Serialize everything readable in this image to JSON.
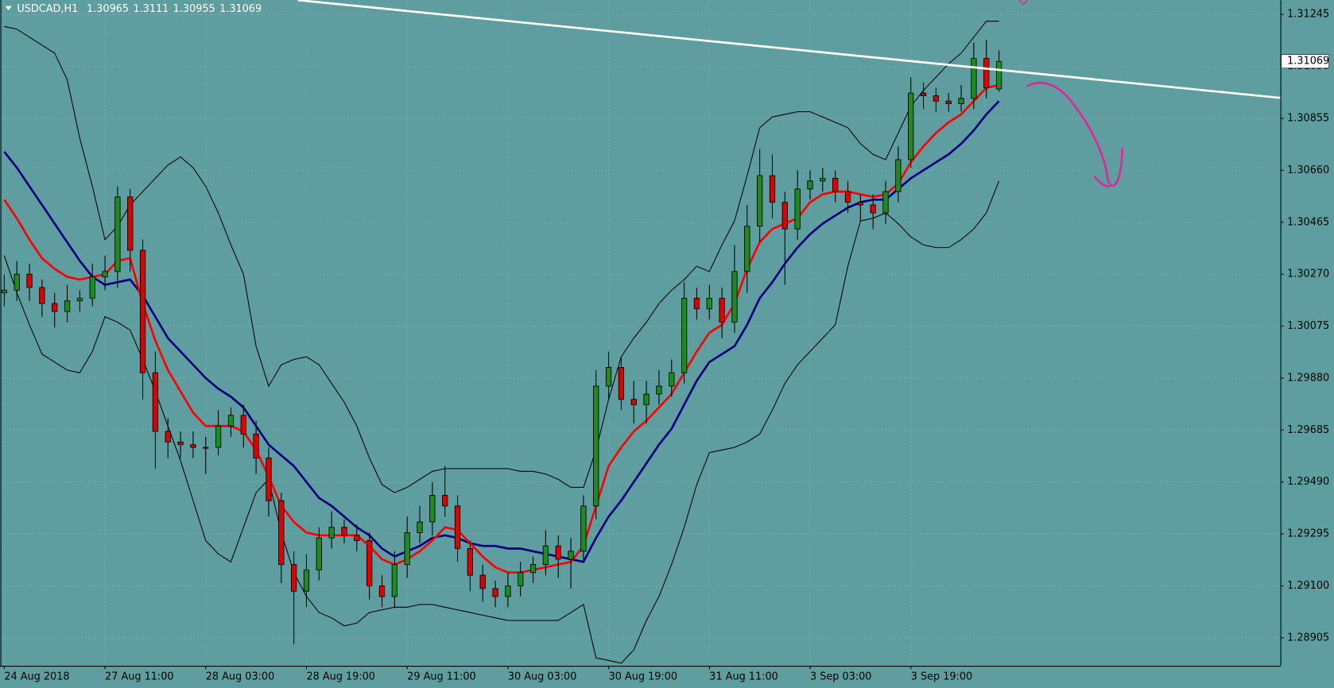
{
  "chart_data": {
    "type": "candlestick",
    "title": "USDCAD,H1",
    "categories": [
      "24 Aug 2018",
      null,
      null,
      null,
      null,
      null,
      null,
      null,
      "27 Aug 11:00",
      null,
      null,
      null,
      null,
      null,
      null,
      null,
      "28 Aug 03:00",
      null,
      null,
      null,
      null,
      null,
      null,
      null,
      "28 Aug 19:00",
      null,
      null,
      null,
      null,
      null,
      null,
      null,
      "29 Aug 11:00",
      null,
      null,
      null,
      null,
      null,
      null,
      null,
      "30 Aug 03:00",
      null,
      null,
      null,
      null,
      null,
      null,
      null,
      "30 Aug 19:00",
      null,
      null,
      null,
      null,
      null,
      null,
      null,
      "31 Aug 11:00",
      null,
      null,
      null,
      null,
      null,
      null,
      null,
      "3 Sep 03:00",
      null,
      null,
      null,
      null,
      null,
      null,
      null,
      "3 Sep 19:00",
      null,
      null,
      null,
      null,
      null,
      null,
      null
    ],
    "open": [
      1.302,
      1.3021,
      1.3027,
      1.3022,
      1.3016,
      1.3013,
      1.3017,
      1.3018,
      1.3026,
      1.3028,
      1.3056,
      1.3036,
      1.299,
      1.2968,
      1.2964,
      1.2963,
      1.2962,
      1.2962,
      1.297,
      1.2974,
      1.2967,
      1.2958,
      1.2942,
      1.2918,
      1.2908,
      1.2916,
      1.2928,
      1.2932,
      1.2929,
      1.2927,
      1.291,
      1.2906,
      1.2918,
      1.293,
      1.2934,
      1.2944,
      1.294,
      1.2924,
      1.2914,
      1.2909,
      1.2906,
      1.291,
      1.2915,
      1.2918,
      1.2925,
      1.292,
      1.2923,
      1.294,
      1.2985,
      1.2992,
      1.298,
      1.2978,
      1.2982,
      1.2985,
      1.299,
      1.3018,
      1.3014,
      1.3018,
      1.3009,
      1.3028,
      1.3045,
      1.3064,
      1.3054,
      1.3044,
      1.3059,
      1.3062,
      1.3063,
      1.3058,
      1.3054,
      1.3053,
      1.305,
      1.3058,
      1.307,
      1.3095,
      1.3094,
      1.3092,
      1.3091,
      1.3093,
      1.3108,
      1.30965
    ],
    "high": [
      1.3027,
      1.3032,
      1.3031,
      1.3025,
      1.302,
      1.3023,
      1.3021,
      1.3031,
      1.3034,
      1.306,
      1.3059,
      1.304,
      1.2998,
      1.2973,
      1.2968,
      1.2968,
      1.2966,
      1.2976,
      1.2977,
      1.2978,
      1.2972,
      1.2962,
      1.2945,
      1.2923,
      1.2922,
      1.2932,
      1.2938,
      1.2935,
      1.2933,
      1.293,
      1.2914,
      1.2923,
      1.2936,
      1.294,
      1.2949,
      1.2955,
      1.2944,
      1.2927,
      1.2918,
      1.2912,
      1.2915,
      1.2919,
      1.2921,
      1.2931,
      1.2929,
      1.2928,
      1.2944,
      1.2991,
      1.2998,
      1.2996,
      1.2987,
      1.2987,
      1.2991,
      1.2995,
      1.3024,
      1.3022,
      1.3023,
      1.3022,
      1.3038,
      1.3053,
      1.3074,
      1.3072,
      1.3058,
      1.3066,
      1.3066,
      1.3067,
      1.3066,
      1.3062,
      1.3057,
      1.3057,
      1.3062,
      1.3075,
      1.3101,
      1.3099,
      1.3097,
      1.3095,
      1.3098,
      1.3114,
      1.3115,
      1.3111
    ],
    "low": [
      1.3015,
      1.3017,
      1.3017,
      1.3011,
      1.3007,
      1.3009,
      1.3013,
      1.3015,
      1.3021,
      1.3022,
      1.3028,
      1.298,
      1.2954,
      1.2958,
      1.2958,
      1.2958,
      1.2952,
      1.2959,
      1.2966,
      1.2962,
      1.2952,
      1.2936,
      1.2911,
      1.2888,
      1.2902,
      1.2912,
      1.2924,
      1.2926,
      1.2923,
      1.2905,
      1.2902,
      1.2902,
      1.2913,
      1.2926,
      1.2929,
      1.2936,
      1.2919,
      1.2908,
      1.2904,
      1.2902,
      1.2902,
      1.2906,
      1.2911,
      1.2914,
      1.2913,
      1.2909,
      1.2919,
      1.2935,
      1.298,
      1.2976,
      1.2971,
      1.2971,
      1.2978,
      1.2981,
      1.2986,
      1.301,
      1.301,
      1.3003,
      1.3005,
      1.302,
      1.3039,
      1.3048,
      1.3023,
      1.304,
      1.3055,
      1.3058,
      1.3054,
      1.305,
      1.3047,
      1.3044,
      1.3046,
      1.3054,
      1.3067,
      1.3089,
      1.3088,
      1.3088,
      1.3088,
      1.3089,
      1.3093,
      1.30955
    ],
    "close": [
      1.3021,
      1.3027,
      1.3022,
      1.3016,
      1.3013,
      1.3017,
      1.3018,
      1.3026,
      1.3028,
      1.3056,
      1.3036,
      1.299,
      1.2968,
      1.2964,
      1.2963,
      1.2962,
      1.2962,
      1.297,
      1.2974,
      1.2967,
      1.2958,
      1.2942,
      1.2918,
      1.2908,
      1.2916,
      1.2928,
      1.2932,
      1.2929,
      1.2927,
      1.291,
      1.2906,
      1.2918,
      1.293,
      1.2934,
      1.2944,
      1.294,
      1.2924,
      1.2914,
      1.2909,
      1.2906,
      1.291,
      1.2915,
      1.2918,
      1.2925,
      1.292,
      1.2923,
      1.294,
      1.2985,
      1.2992,
      1.298,
      1.2978,
      1.2982,
      1.2985,
      1.299,
      1.3018,
      1.3014,
      1.3018,
      1.3009,
      1.3028,
      1.3045,
      1.3064,
      1.3054,
      1.3044,
      1.3059,
      1.3062,
      1.3063,
      1.3058,
      1.3054,
      1.3053,
      1.305,
      1.3058,
      1.307,
      1.3095,
      1.3094,
      1.3092,
      1.3091,
      1.3093,
      1.3108,
      1.3097,
      1.31069
    ],
    "up_color": "#1f8a1f",
    "down_color": "#e00000",
    "series": [
      {
        "color": "#000000",
        "values": [
          1.312,
          1.3119,
          1.3116,
          1.3113,
          1.311,
          1.31,
          1.3078,
          1.306,
          1.304,
          1.3045,
          1.3053,
          1.3058,
          1.3063,
          1.3068,
          1.3071,
          1.3067,
          1.306,
          1.305,
          1.3038,
          1.3027,
          1.3,
          1.2985,
          1.2993,
          1.2995,
          1.2996,
          1.2993,
          1.2986,
          1.2979,
          1.297,
          1.2958,
          1.2948,
          1.2945,
          1.2947,
          1.295,
          1.2953,
          1.2954,
          1.2954,
          1.2954,
          1.2954,
          1.2954,
          1.2954,
          1.2953,
          1.2953,
          1.2952,
          1.295,
          1.2947,
          1.2947,
          1.2961,
          1.298,
          1.2996,
          1.3003,
          1.3009,
          1.3016,
          1.3021,
          1.3025,
          1.303,
          1.3028,
          1.3038,
          1.3047,
          1.3064,
          1.3082,
          1.3086,
          1.3087,
          1.3088,
          1.3088,
          1.3086,
          1.3084,
          1.3082,
          1.3076,
          1.3072,
          1.307,
          1.308,
          1.309,
          1.3096,
          1.3101,
          1.3106,
          1.311,
          1.3116,
          1.3122,
          1.3122
        ]
      },
      {
        "color": "#000000",
        "values": [
          1.3034,
          1.302,
          1.3008,
          1.2997,
          1.2994,
          1.2991,
          1.299,
          1.2998,
          1.3011,
          1.3009,
          1.3006,
          1.2995,
          1.2983,
          1.297,
          1.2957,
          1.2942,
          1.2927,
          1.2922,
          1.2919,
          1.2932,
          1.2945,
          1.295,
          1.293,
          1.2915,
          1.2906,
          1.29,
          1.2898,
          1.2895,
          1.2896,
          1.29,
          1.2901,
          1.2902,
          1.2902,
          1.2903,
          1.2903,
          1.2902,
          1.2901,
          1.29,
          1.2899,
          1.2898,
          1.2897,
          1.2897,
          1.2897,
          1.2897,
          1.2897,
          1.29,
          1.2903,
          1.2883,
          1.2882,
          1.2881,
          1.2886,
          1.2897,
          1.2906,
          1.2918,
          1.2932,
          1.2948,
          1.296,
          1.2961,
          1.2962,
          1.2964,
          1.2967,
          1.2976,
          1.2986,
          1.2993,
          1.2998,
          1.3003,
          1.3008,
          1.303,
          1.3047,
          1.3048,
          1.305,
          1.3046,
          1.3041,
          1.3038,
          1.3037,
          1.3037,
          1.304,
          1.3044,
          1.305,
          1.3062
        ]
      },
      {
        "color": "#000080",
        "values": [
          1.3073,
          1.3067,
          1.306,
          1.3053,
          1.3046,
          1.3039,
          1.3032,
          1.3026,
          1.3023,
          1.3024,
          1.3025,
          1.3019,
          1.3011,
          1.3003,
          1.2998,
          1.2993,
          1.2988,
          1.2984,
          1.2981,
          1.2977,
          1.297,
          1.2963,
          1.2959,
          1.2955,
          1.2949,
          1.2943,
          1.294,
          1.2936,
          1.2932,
          1.2929,
          1.2924,
          1.2921,
          1.2923,
          1.2925,
          1.2928,
          1.2929,
          1.2928,
          1.2926,
          1.2925,
          1.2925,
          1.2924,
          1.2924,
          1.2923,
          1.2922,
          1.2921,
          1.292,
          1.2919,
          1.2928,
          1.2936,
          1.2942,
          1.2949,
          1.2956,
          1.2963,
          1.2969,
          1.2978,
          1.2987,
          1.2994,
          1.2997,
          1.3,
          1.3008,
          1.3018,
          1.3024,
          1.3031,
          1.3037,
          1.3042,
          1.3046,
          1.3049,
          1.3052,
          1.3054,
          1.3055,
          1.3055,
          1.3059,
          1.3063,
          1.3066,
          1.3069,
          1.3072,
          1.3076,
          1.3081,
          1.3087,
          1.3092
        ]
      },
      {
        "color": "#ff0000",
        "values": [
          1.3055,
          1.3048,
          1.304,
          1.3033,
          1.3029,
          1.3026,
          1.3025,
          1.3026,
          1.3027,
          1.3032,
          1.3033,
          1.3016,
          1.3002,
          1.2991,
          1.2983,
          1.2975,
          1.297,
          1.297,
          1.297,
          1.2968,
          1.2961,
          1.2951,
          1.294,
          1.2934,
          1.293,
          1.2929,
          1.2929,
          1.2929,
          1.2929,
          1.2925,
          1.292,
          1.2918,
          1.292,
          1.2923,
          1.2927,
          1.2932,
          1.2931,
          1.2926,
          1.2921,
          1.2917,
          1.2915,
          1.2915,
          1.2916,
          1.2917,
          1.2918,
          1.2919,
          1.2925,
          1.294,
          1.2955,
          1.2962,
          1.2968,
          1.2972,
          1.2977,
          1.2982,
          1.299,
          1.2998,
          1.3005,
          1.3008,
          1.3016,
          1.3029,
          1.3039,
          1.3044,
          1.3046,
          1.3048,
          1.3054,
          1.3057,
          1.3058,
          1.3058,
          1.3057,
          1.3056,
          1.3057,
          1.3061,
          1.3069,
          1.3075,
          1.308,
          1.3084,
          1.3087,
          1.3092,
          1.3097,
          1.3098
        ]
      }
    ],
    "ylim": [
      1.288,
      1.31299
    ],
    "yticks": [
      1.31245,
      {
        "value": 1.3105,
        "label": "1.31050"
      },
      1.30855,
      {
        "value": 1.3066,
        "label": "1.30660"
      },
      1.30465,
      {
        "value": 1.3027,
        "label": "1.30270"
      },
      1.30075,
      {
        "value": 1.2988,
        "label": "1.29880"
      },
      1.29685,
      {
        "value": 1.2949,
        "label": "1.29490"
      },
      1.29295,
      {
        "value": 1.291,
        "label": "1.29100"
      },
      1.28905
    ],
    "grid": true
  }
}
